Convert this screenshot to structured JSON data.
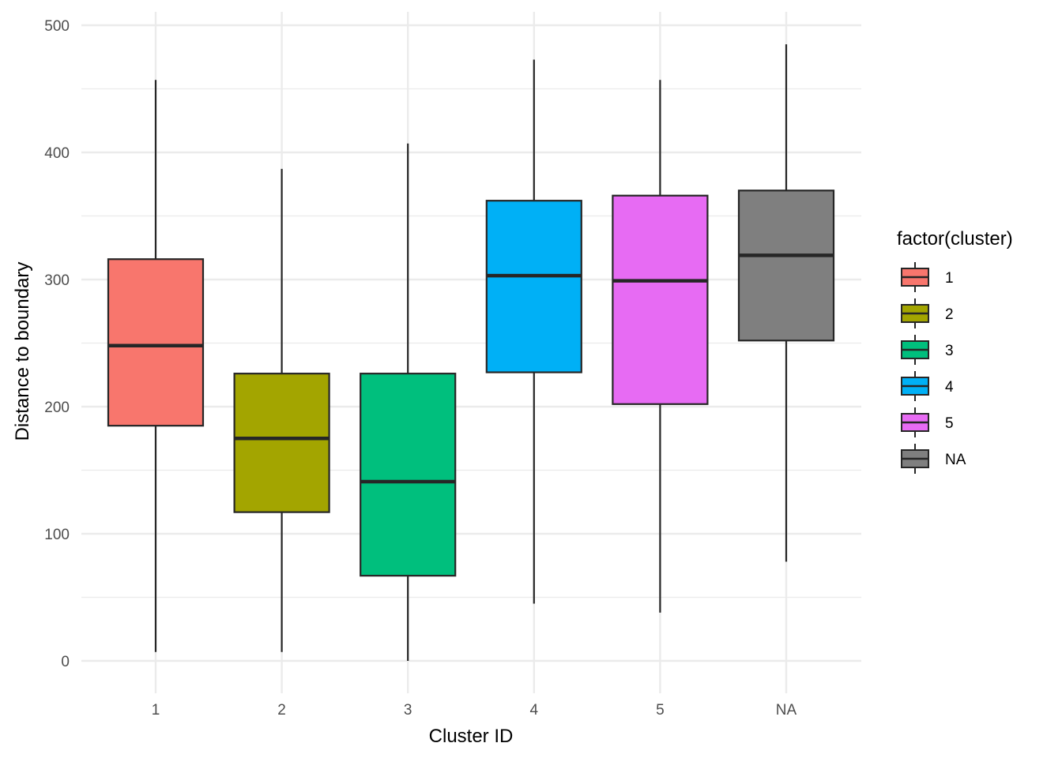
{
  "chart_data": {
    "type": "boxplot",
    "xlabel": "Cluster ID",
    "ylabel": "Distance to boundary",
    "categories": [
      "1",
      "2",
      "3",
      "4",
      "5",
      "NA"
    ],
    "ylim": [
      -25,
      515
    ],
    "yticks": [
      0,
      100,
      200,
      300,
      400,
      500
    ],
    "grid": true,
    "legend": {
      "title": "factor(cluster)",
      "position": "right",
      "entries": [
        "1",
        "2",
        "3",
        "4",
        "5",
        "NA"
      ]
    },
    "series": [
      {
        "category": "1",
        "color": "#F8766D",
        "min": 7,
        "q1": 185,
        "median": 248,
        "q3": 316,
        "max": 457
      },
      {
        "category": "2",
        "color": "#A3A500",
        "min": 7,
        "q1": 117,
        "median": 175,
        "q3": 226,
        "max": 387
      },
      {
        "category": "3",
        "color": "#00BF7D",
        "min": 0,
        "q1": 67,
        "median": 141,
        "q3": 226,
        "max": 407
      },
      {
        "category": "4",
        "color": "#00B0F6",
        "min": 45,
        "q1": 227,
        "median": 303,
        "q3": 362,
        "max": 473
      },
      {
        "category": "5",
        "color": "#E76BF3",
        "min": 38,
        "q1": 202,
        "median": 299,
        "q3": 366,
        "max": 457
      },
      {
        "category": "NA",
        "color": "#7F7F7F",
        "min": 78,
        "q1": 252,
        "median": 319,
        "q3": 370,
        "max": 485
      }
    ]
  }
}
